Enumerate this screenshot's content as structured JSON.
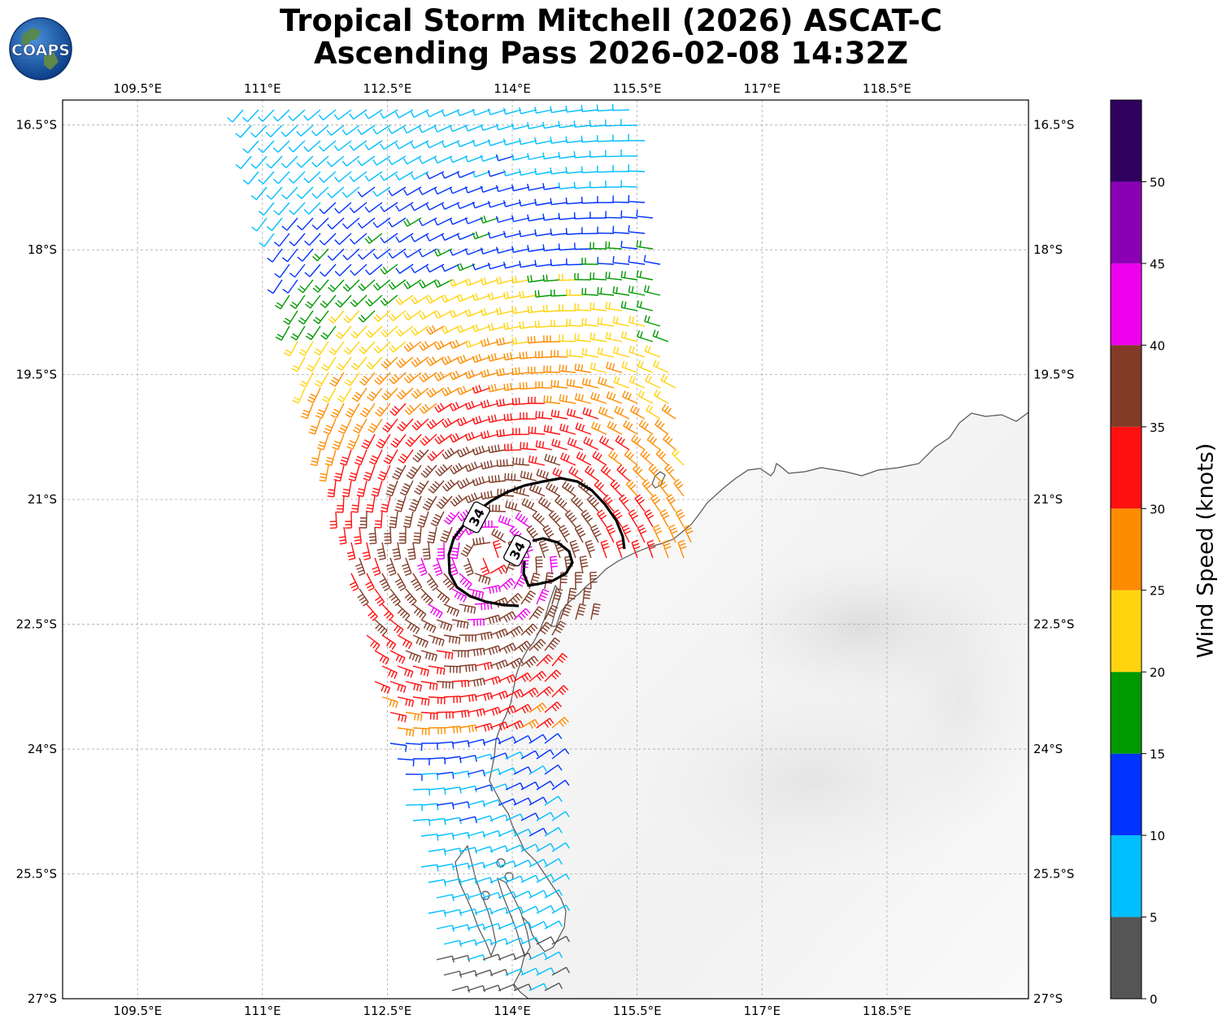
{
  "header": {
    "title_line1": "Tropical Storm Mitchell (2026) ASCAT-C",
    "title_line2": "Ascending Pass 2026-02-08 14:32Z",
    "logo_text": "COAPS"
  },
  "map": {
    "lon_range": [
      108.6,
      120.2
    ],
    "lat_range": [
      -27.0,
      -16.2
    ],
    "lon_ticks": [
      "109.5°E",
      "111°E",
      "112.5°E",
      "114°E",
      "115.5°E",
      "117°E",
      "118.5°E"
    ],
    "lon_tick_values": [
      109.5,
      111,
      112.5,
      114,
      115.5,
      117,
      118.5
    ],
    "lat_ticks": [
      "16.5°S",
      "18°S",
      "19.5°S",
      "21°S",
      "22.5°S",
      "24°S",
      "25.5°S",
      "27°S"
    ],
    "lat_tick_values": [
      -16.5,
      -18,
      -19.5,
      -21,
      -22.5,
      -24,
      -25.5,
      -27
    ],
    "gridlines": true,
    "storm_center": {
      "lon": 113.7,
      "lat": -21.7
    },
    "contour_label": "34"
  },
  "colorbar": {
    "label": "Wind Speed (knots)",
    "ticks": [
      "0",
      "5",
      "10",
      "15",
      "20",
      "25",
      "30",
      "35",
      "40",
      "45",
      "50"
    ],
    "bounds": [
      0,
      5,
      10,
      15,
      20,
      25,
      30,
      35,
      40,
      45,
      50,
      55
    ],
    "colors": [
      "#555555",
      "#00bfff",
      "#0033ff",
      "#009900",
      "#ffd40f",
      "#ff8c00",
      "#ff1010",
      "#813b27",
      "#ee00ee",
      "#8b00b5",
      "#30005f"
    ]
  },
  "chart_data": {
    "type": "scatter",
    "title": "Tropical Storm Mitchell (2026) ASCAT-C Ascending Pass 2026-02-08 14:32Z",
    "xlabel": "",
    "ylabel": "",
    "xlim": [
      108.6,
      120.2
    ],
    "ylim": [
      -27.0,
      -16.2
    ],
    "color_scale_label": "Wind Speed (knots)",
    "storm_center": [
      113.7,
      -21.7
    ],
    "max_wind_kt_observed": 45
  }
}
